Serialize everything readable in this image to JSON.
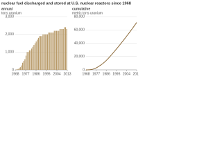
{
  "title": "nuclear fuel discharged and stored at U.S. nuclear reactors since 1968",
  "chart_data": [
    {
      "type": "bar",
      "subtitle": "annual",
      "unit_label": "tons uranium",
      "color": "#b89a68",
      "x": [
        1968,
        1969,
        1970,
        1971,
        1972,
        1973,
        1974,
        1975,
        1976,
        1977,
        1978,
        1979,
        1980,
        1981,
        1982,
        1983,
        1984,
        1985,
        1986,
        1987,
        1988,
        1989,
        1990,
        1991,
        1992,
        1993,
        1994,
        1995,
        1996,
        1997,
        1998,
        1999,
        2000,
        2001,
        2002,
        2003,
        2004,
        2005,
        2006,
        2007,
        2008,
        2009,
        2010,
        2011,
        2012,
        2013
      ],
      "values": [
        10,
        30,
        50,
        100,
        150,
        250,
        400,
        500,
        600,
        800,
        1000,
        1000,
        1100,
        1100,
        1200,
        1300,
        1400,
        1500,
        1600,
        1700,
        1800,
        1900,
        1900,
        1900,
        2000,
        2000,
        2000,
        2000,
        2000,
        2100,
        2100,
        2100,
        2100,
        2100,
        2200,
        2200,
        2200,
        2200,
        2200,
        2300,
        2300,
        2300,
        2300,
        2400,
        2400,
        2300
      ],
      "xlim": [
        1968,
        2013
      ],
      "xticks": [
        1968,
        1977,
        1986,
        1995,
        2004,
        2013
      ],
      "ylim": [
        0,
        3000
      ],
      "yticks": [
        0,
        {
          "value": 1000,
          "label": "1,000"
        },
        {
          "value": 2000,
          "label": "2,000"
        },
        {
          "value": 3000,
          "label": "3,000"
        }
      ],
      "grid": true
    },
    {
      "type": "line",
      "subtitle": "cumulative",
      "unit_label": "metric tons uranium",
      "color": "#8c6a3a",
      "x": [
        1968,
        1969,
        1970,
        1971,
        1972,
        1973,
        1974,
        1975,
        1976,
        1977,
        1978,
        1979,
        1980,
        1981,
        1982,
        1983,
        1984,
        1985,
        1986,
        1987,
        1988,
        1989,
        1990,
        1991,
        1992,
        1993,
        1994,
        1995,
        1996,
        1997,
        1998,
        1999,
        2000,
        2001,
        2002,
        2003,
        2004,
        2005,
        2006,
        2007,
        2008,
        2009,
        2010,
        2011,
        2012,
        2013
      ],
      "values": [
        10,
        40,
        90,
        190,
        340,
        590,
        990,
        1490,
        2090,
        2890,
        3890,
        4890,
        5990,
        7090,
        8290,
        9590,
        10990,
        12490,
        14090,
        15790,
        17590,
        19490,
        21390,
        23290,
        25290,
        27290,
        29290,
        31290,
        33290,
        35390,
        37490,
        39590,
        41690,
        43790,
        45990,
        48190,
        50390,
        52590,
        54790,
        57090,
        59390,
        61690,
        63990,
        66390,
        68790,
        71090
      ],
      "xlim": [
        1968,
        2013
      ],
      "xticks": [
        1968,
        1977,
        1986,
        1995,
        2004,
        2013
      ],
      "ylim": [
        0,
        80000
      ],
      "yticks": [
        0,
        {
          "value": 20000,
          "label": "20,000"
        },
        {
          "value": 40000,
          "label": "40,000"
        },
        {
          "value": 60000,
          "label": "60,000"
        },
        {
          "value": 80000,
          "label": "80,000"
        }
      ],
      "grid": true
    }
  ]
}
